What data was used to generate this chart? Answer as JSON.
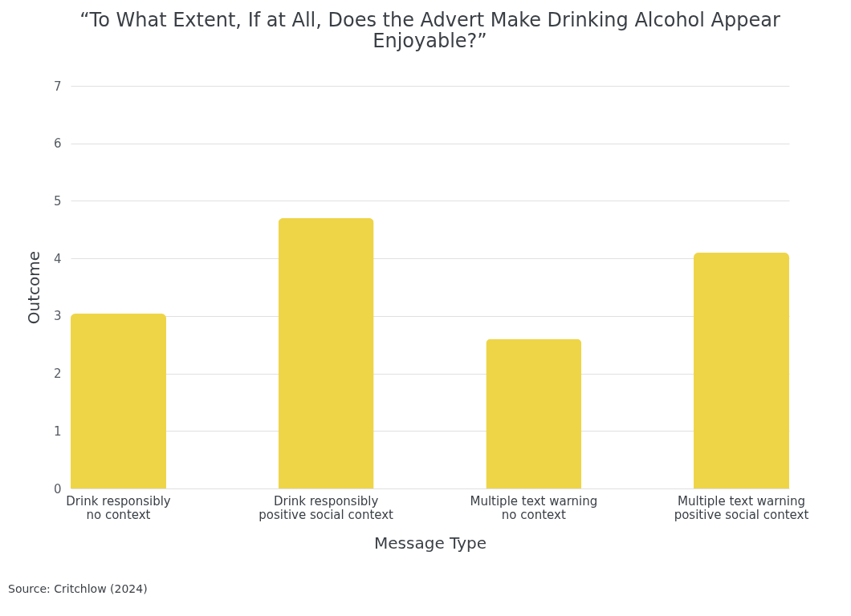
{
  "chart_data": {
    "type": "bar",
    "title": "“To What Extent, If at All, Does the Advert Make Drinking Alcohol Appear\nEnjoyable?”",
    "categories": [
      "Drink responsibly\nno context",
      "Drink responsibly\npositive social context",
      "Multiple text warning\nno context",
      "Multiple text warning\npositive social context"
    ],
    "values": [
      3.04,
      4.7,
      2.6,
      4.1
    ],
    "color": "#eed547",
    "xlabel": "Message Type",
    "ylabel": "Outcome",
    "ylim": [
      0,
      7
    ],
    "yticks": [
      0,
      1,
      2,
      3,
      4,
      5,
      6,
      7
    ],
    "grid": "y",
    "annotations": [
      "Source: Critchlow (2024)"
    ]
  }
}
